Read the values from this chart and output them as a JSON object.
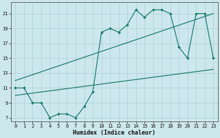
{
  "xlabel": "Humidex (Indice chaleur)",
  "bg_color": "#cde8ed",
  "line_color": "#1e7d72",
  "grid_color": "#aed4d8",
  "xlim": [
    -0.5,
    23.5
  ],
  "ylim": [
    6.5,
    22.5
  ],
  "yticks": [
    7,
    9,
    11,
    13,
    15,
    17,
    19,
    21
  ],
  "xticks": [
    0,
    1,
    2,
    3,
    4,
    5,
    6,
    7,
    8,
    9,
    10,
    11,
    12,
    13,
    14,
    15,
    16,
    17,
    18,
    19,
    20,
    21,
    22,
    23
  ],
  "line1_x": [
    0,
    1,
    2,
    3,
    4,
    5,
    6,
    7,
    8,
    9,
    10,
    11,
    12,
    13,
    14,
    15,
    16,
    17,
    18,
    19,
    20,
    21,
    22,
    23
  ],
  "line1_y": [
    11,
    11,
    9,
    9,
    7,
    7.5,
    7.5,
    7,
    8.5,
    10.5,
    18.5,
    19,
    18.5,
    19.5,
    21.5,
    20.5,
    21.5,
    21.5,
    21,
    16.5,
    15,
    21,
    21,
    15
  ],
  "line2_x": [
    0,
    23
  ],
  "line2_y": [
    12.0,
    21.0
  ],
  "line3_x": [
    0,
    23
  ],
  "line3_y": [
    10.0,
    13.5
  ],
  "tick_fontsize": 5.0,
  "xlabel_fontsize": 6.0
}
